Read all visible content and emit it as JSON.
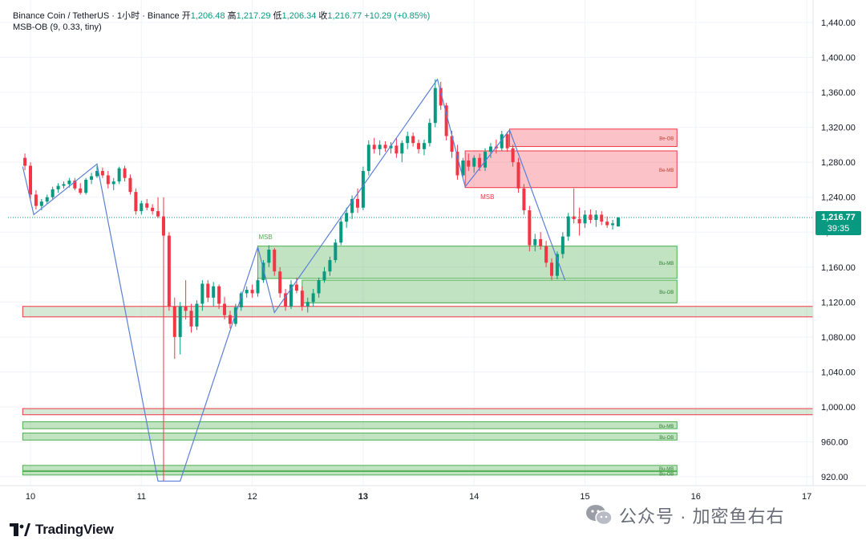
{
  "header": {
    "symbol_line_prefix": "Binance Coin / TetherUS · 1小时 · Binance",
    "open_label": "开",
    "open_value": "1,206.48",
    "high_label": "高",
    "high_value": "1,217.29",
    "low_label": "低",
    "low_value": "1,206.34",
    "close_label": "收",
    "close_value": "1,216.77",
    "change": "+10.29 (+0.85%)",
    "indicator": "MSB-OB (9, 0.33, tiny)"
  },
  "price_scale": {
    "ticks": [
      "1,440.00",
      "1,400.00",
      "1,360.00",
      "1,320.00",
      "1,280.00",
      "1,240.00",
      "1,200.00",
      "1,160.00",
      "1,120.00",
      "1,080.00",
      "1,040.00",
      "1,000.00",
      "960.00",
      "920.00"
    ],
    "tick_values": [
      1440,
      1400,
      1360,
      1320,
      1280,
      1240,
      1200,
      1160,
      1120,
      1080,
      1040,
      1000,
      960,
      920
    ],
    "current_price": "1,216.77",
    "countdown": "39:35"
  },
  "time_scale": {
    "ticks": [
      "10",
      "11",
      "12",
      "13",
      "14",
      "15",
      "16",
      "17"
    ],
    "bold_tick": "13"
  },
  "chart_data": {
    "type": "candlestick",
    "symbol": "Binance Coin / TetherUS",
    "interval": "1小时",
    "exchange": "Binance",
    "ylim": [
      915,
      1450
    ],
    "last_price": 1216.77,
    "colors": {
      "up": "#089981",
      "down": "#f23645",
      "zigzag": "#5b7fd8",
      "bull_zone": "#4caf50",
      "bear_zone": "#f23645"
    },
    "zones": [
      {
        "label": "Be-OB",
        "type": "bear",
        "y0": 1298,
        "y1": 1318,
        "x0": 14.32,
        "x1": 15.83
      },
      {
        "label": "Be-MB",
        "type": "bear",
        "y0": 1251,
        "y1": 1293,
        "x0": 13.92,
        "x1": 15.83
      },
      {
        "label": "Bu-MB",
        "type": "bull",
        "y0": 1147,
        "y1": 1184,
        "x0": 12.05,
        "x1": 15.83
      },
      {
        "label": "Bu-OB",
        "type": "bull",
        "y0": 1119,
        "y1": 1145,
        "x0": 12.45,
        "x1": 15.83
      },
      {
        "label": "",
        "type": "mixed",
        "y0": 1103,
        "y1": 1115,
        "x0": 9.93,
        "x1": 17.1
      },
      {
        "label": "",
        "type": "mixed",
        "y0": 991,
        "y1": 998,
        "x0": 9.93,
        "x1": 17.1
      },
      {
        "label": "Bu-MB",
        "type": "bull",
        "y0": 975,
        "y1": 983,
        "x0": 9.93,
        "x1": 15.83
      },
      {
        "label": "Bu-OB",
        "type": "bull",
        "y0": 962,
        "y1": 970,
        "x0": 9.93,
        "x1": 15.83
      },
      {
        "label": "Bu-MB",
        "type": "bull",
        "y0": 927,
        "y1": 933,
        "x0": 9.93,
        "x1": 15.83
      },
      {
        "label": "Bu-OB",
        "type": "bull",
        "y0": 922,
        "y1": 926,
        "x0": 9.93,
        "x1": 15.83
      }
    ],
    "msb_labels": [
      {
        "text": "MSB",
        "x": 12.12,
        "y": 1192
      },
      {
        "text": "MSB",
        "x": 14.12,
        "y": 1238
      }
    ],
    "zigzag": [
      [
        9.93,
        1275
      ],
      [
        10.03,
        1220
      ],
      [
        10.6,
        1278
      ],
      [
        11.15,
        915
      ],
      [
        11.35,
        915
      ],
      [
        12.05,
        1183
      ],
      [
        12.2,
        1108
      ],
      [
        13.67,
        1375
      ],
      [
        13.92,
        1252
      ],
      [
        14.32,
        1317
      ],
      [
        14.82,
        1145
      ]
    ],
    "vline": {
      "x": 11.2,
      "y0": 915,
      "y1": 1240
    },
    "candles": [
      [
        9.95,
        1285,
        1290,
        1271,
        1276
      ],
      [
        10.0,
        1276,
        1280,
        1238,
        1243
      ],
      [
        10.05,
        1243,
        1248,
        1226,
        1230
      ],
      [
        10.1,
        1230,
        1238,
        1225,
        1235
      ],
      [
        10.15,
        1235,
        1243,
        1232,
        1240
      ],
      [
        10.2,
        1240,
        1252,
        1238,
        1249
      ],
      [
        10.25,
        1249,
        1256,
        1245,
        1253
      ],
      [
        10.3,
        1253,
        1258,
        1250,
        1255
      ],
      [
        10.35,
        1255,
        1262,
        1251,
        1259
      ],
      [
        10.4,
        1259,
        1262,
        1248,
        1250
      ],
      [
        10.45,
        1250,
        1256,
        1243,
        1245
      ],
      [
        10.5,
        1245,
        1262,
        1243,
        1260
      ],
      [
        10.55,
        1260,
        1268,
        1255,
        1264
      ],
      [
        10.6,
        1264,
        1276,
        1262,
        1270
      ],
      [
        10.65,
        1270,
        1274,
        1262,
        1265
      ],
      [
        10.7,
        1265,
        1270,
        1250,
        1255
      ],
      [
        10.75,
        1255,
        1262,
        1248,
        1258
      ],
      [
        10.8,
        1258,
        1275,
        1255,
        1273
      ],
      [
        10.85,
        1273,
        1276,
        1258,
        1262
      ],
      [
        10.9,
        1262,
        1266,
        1243,
        1246
      ],
      [
        10.95,
        1246,
        1250,
        1220,
        1224
      ],
      [
        11.0,
        1224,
        1236,
        1220,
        1233
      ],
      [
        11.05,
        1233,
        1238,
        1225,
        1228
      ],
      [
        11.1,
        1228,
        1232,
        1220,
        1224
      ],
      [
        11.15,
        1224,
        1240,
        1216,
        1218
      ],
      [
        11.2,
        1218,
        1224,
        1190,
        1196
      ],
      [
        11.25,
        1196,
        1200,
        1110,
        1115
      ],
      [
        11.3,
        1115,
        1125,
        1055,
        1080
      ],
      [
        11.35,
        1080,
        1120,
        1060,
        1115
      ],
      [
        11.4,
        1115,
        1145,
        1100,
        1110
      ],
      [
        11.45,
        1110,
        1118,
        1085,
        1092
      ],
      [
        11.5,
        1092,
        1122,
        1088,
        1118
      ],
      [
        11.55,
        1118,
        1145,
        1110,
        1141
      ],
      [
        11.6,
        1141,
        1145,
        1120,
        1125
      ],
      [
        11.65,
        1125,
        1143,
        1115,
        1138
      ],
      [
        11.7,
        1138,
        1140,
        1112,
        1118
      ],
      [
        11.75,
        1118,
        1126,
        1100,
        1105
      ],
      [
        11.8,
        1105,
        1110,
        1090,
        1095
      ],
      [
        11.85,
        1095,
        1118,
        1092,
        1114
      ],
      [
        11.9,
        1114,
        1132,
        1110,
        1130
      ],
      [
        11.95,
        1130,
        1138,
        1125,
        1134
      ],
      [
        12.0,
        1134,
        1140,
        1125,
        1130
      ],
      [
        12.05,
        1130,
        1148,
        1126,
        1145
      ],
      [
        12.1,
        1145,
        1168,
        1142,
        1165
      ],
      [
        12.15,
        1165,
        1185,
        1160,
        1180
      ],
      [
        12.2,
        1180,
        1182,
        1150,
        1155
      ],
      [
        12.25,
        1155,
        1160,
        1125,
        1130
      ],
      [
        12.3,
        1130,
        1135,
        1110,
        1115
      ],
      [
        12.35,
        1115,
        1145,
        1112,
        1140
      ],
      [
        12.4,
        1140,
        1148,
        1130,
        1133
      ],
      [
        12.45,
        1133,
        1138,
        1110,
        1115
      ],
      [
        12.5,
        1115,
        1125,
        1108,
        1120
      ],
      [
        12.55,
        1120,
        1135,
        1115,
        1130
      ],
      [
        12.6,
        1130,
        1148,
        1125,
        1145
      ],
      [
        12.65,
        1145,
        1160,
        1142,
        1155
      ],
      [
        12.7,
        1155,
        1172,
        1150,
        1168
      ],
      [
        12.75,
        1168,
        1192,
        1165,
        1188
      ],
      [
        12.8,
        1188,
        1218,
        1185,
        1212
      ],
      [
        12.85,
        1212,
        1228,
        1205,
        1222
      ],
      [
        12.9,
        1222,
        1242,
        1215,
        1238
      ],
      [
        12.95,
        1238,
        1250,
        1222,
        1228
      ],
      [
        13.0,
        1228,
        1275,
        1225,
        1270
      ],
      [
        13.05,
        1270,
        1305,
        1265,
        1300
      ],
      [
        13.1,
        1300,
        1308,
        1290,
        1295
      ],
      [
        13.15,
        1295,
        1305,
        1288,
        1300
      ],
      [
        13.2,
        1300,
        1304,
        1292,
        1296
      ],
      [
        13.25,
        1296,
        1303,
        1290,
        1299
      ],
      [
        13.3,
        1299,
        1308,
        1285,
        1290
      ],
      [
        13.35,
        1290,
        1305,
        1280,
        1302
      ],
      [
        13.4,
        1302,
        1315,
        1295,
        1310
      ],
      [
        13.45,
        1310,
        1314,
        1298,
        1302
      ],
      [
        13.5,
        1302,
        1306,
        1290,
        1295
      ],
      [
        13.55,
        1295,
        1306,
        1288,
        1302
      ],
      [
        13.6,
        1302,
        1330,
        1298,
        1325
      ],
      [
        13.65,
        1325,
        1375,
        1320,
        1365
      ],
      [
        13.7,
        1365,
        1372,
        1340,
        1345
      ],
      [
        13.75,
        1345,
        1348,
        1305,
        1310
      ],
      [
        13.8,
        1310,
        1316,
        1285,
        1292
      ],
      [
        13.85,
        1292,
        1300,
        1260,
        1265
      ],
      [
        13.9,
        1265,
        1285,
        1262,
        1282
      ],
      [
        13.95,
        1282,
        1290,
        1270,
        1275
      ],
      [
        14.0,
        1275,
        1288,
        1268,
        1285
      ],
      [
        14.05,
        1285,
        1290,
        1270,
        1274
      ],
      [
        14.1,
        1274,
        1296,
        1270,
        1292
      ],
      [
        14.15,
        1292,
        1302,
        1285,
        1298
      ],
      [
        14.2,
        1298,
        1306,
        1290,
        1296
      ],
      [
        14.25,
        1296,
        1316,
        1293,
        1312
      ],
      [
        14.3,
        1312,
        1315,
        1292,
        1296
      ],
      [
        14.35,
        1296,
        1300,
        1275,
        1280
      ],
      [
        14.4,
        1280,
        1285,
        1245,
        1250
      ],
      [
        14.45,
        1250,
        1255,
        1220,
        1225
      ],
      [
        14.5,
        1225,
        1230,
        1178,
        1185
      ],
      [
        14.55,
        1185,
        1198,
        1178,
        1192
      ],
      [
        14.6,
        1192,
        1200,
        1180,
        1184
      ],
      [
        14.65,
        1184,
        1190,
        1160,
        1165
      ],
      [
        14.7,
        1165,
        1170,
        1145,
        1150
      ],
      [
        14.75,
        1150,
        1178,
        1146,
        1175
      ],
      [
        14.8,
        1175,
        1200,
        1170,
        1195
      ],
      [
        14.85,
        1195,
        1222,
        1190,
        1218
      ],
      [
        14.9,
        1218,
        1250,
        1210,
        1215
      ],
      [
        14.95,
        1215,
        1228,
        1196,
        1210
      ],
      [
        15.0,
        1210,
        1225,
        1205,
        1220
      ],
      [
        15.05,
        1220,
        1226,
        1210,
        1214
      ],
      [
        15.1,
        1214,
        1225,
        1206,
        1220
      ],
      [
        15.15,
        1220,
        1224,
        1208,
        1212
      ],
      [
        15.2,
        1212,
        1218,
        1205,
        1208
      ],
      [
        15.25,
        1208,
        1214,
        1203,
        1210
      ],
      [
        15.3,
        1206.48,
        1217.29,
        1206.34,
        1216.77
      ]
    ]
  },
  "branding": {
    "tradingview": "TradingView",
    "watermark": "公众号 · 加密鱼右右"
  }
}
